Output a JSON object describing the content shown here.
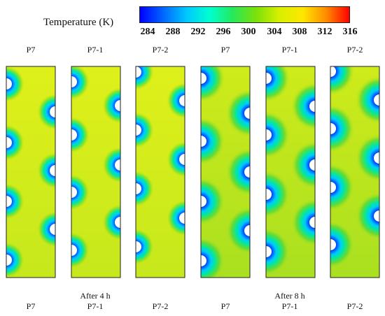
{
  "legend": {
    "title": "Temperature (K)",
    "ticks": [
      "284",
      "288",
      "292",
      "296",
      "300",
      "304",
      "308",
      "312",
      "316"
    ],
    "colormap": [
      "#0000ff",
      "#0066ff",
      "#00c8ff",
      "#00ffd0",
      "#26e85a",
      "#7ee00a",
      "#d8f000",
      "#ffe600",
      "#ff8c00",
      "#ff0000"
    ]
  },
  "top_labels": [
    "P7",
    "P7-1",
    "P7-2",
    "P7",
    "P7-1",
    "P7-2"
  ],
  "bottom_labels": [
    "P7",
    "P7-1",
    "P7-2",
    "P7",
    "P7-1",
    "P7-2"
  ],
  "groups": [
    "After 4 h",
    "After 8 h"
  ],
  "colors": {
    "panel_base": "#cdea1a",
    "cold_core": "#1a1aff",
    "tube": "#ffffff"
  }
}
